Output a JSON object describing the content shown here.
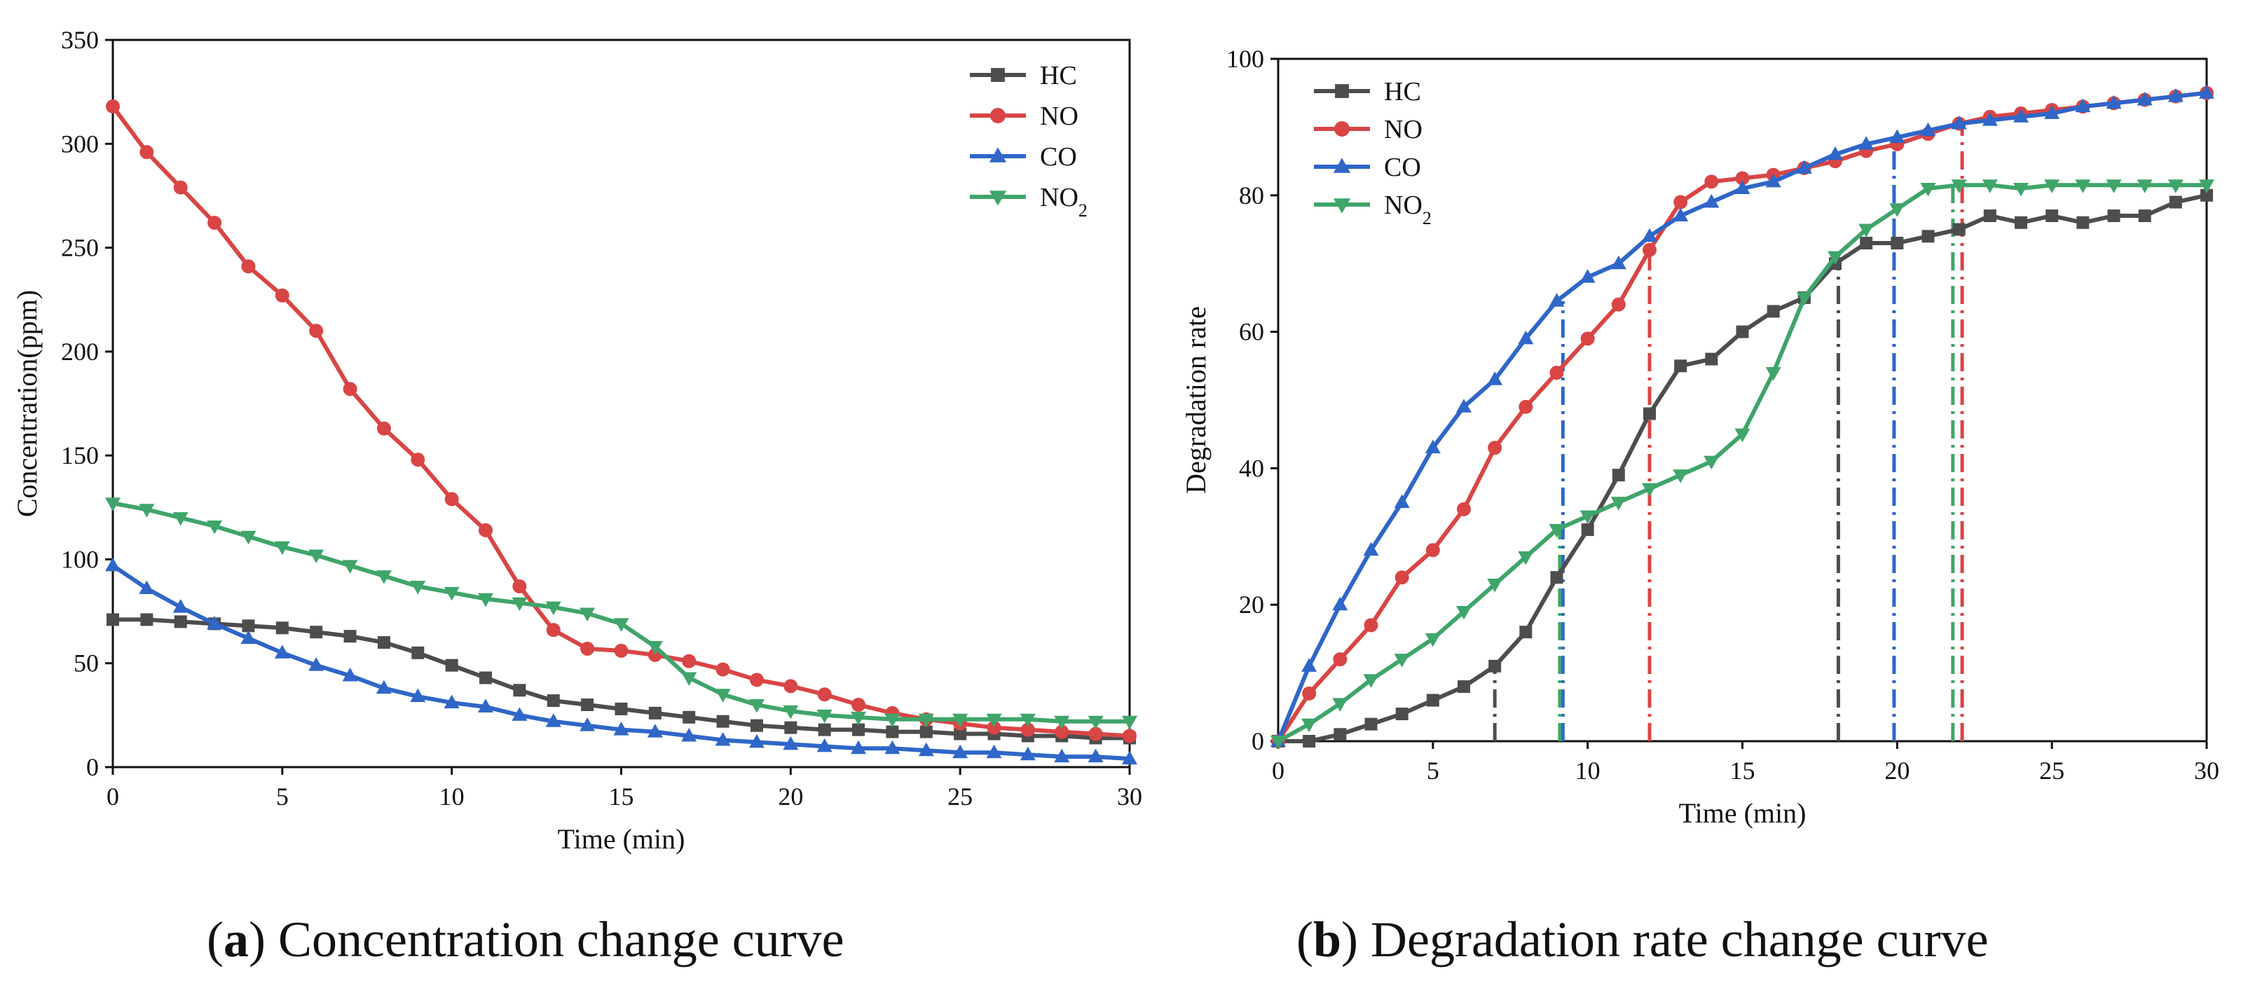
{
  "colors": {
    "HC": "#4d4d4d",
    "NO": "#d94545",
    "CO": "#2f66c8",
    "NO2": "#3fa56a"
  },
  "captions": {
    "a_letter": "a",
    "a_text": "Concentration change curve",
    "b_letter": "b",
    "b_text": "Degradation rate change curve"
  },
  "chart_data": [
    {
      "type": "line",
      "title": "",
      "xlabel": "Time (min)",
      "ylabel": "Concentration(ppm)",
      "xlim": [
        0,
        30
      ],
      "ylim": [
        0,
        350
      ],
      "xticks": [
        0,
        5,
        10,
        15,
        20,
        25,
        30
      ],
      "yticks": [
        0,
        50,
        100,
        150,
        200,
        250,
        300,
        350
      ],
      "legend_position": "top-right",
      "x": [
        0,
        1,
        2,
        3,
        4,
        5,
        6,
        7,
        8,
        9,
        10,
        11,
        12,
        13,
        14,
        15,
        16,
        17,
        18,
        19,
        20,
        21,
        22,
        23,
        24,
        25,
        26,
        27,
        28,
        29,
        30
      ],
      "series": [
        {
          "name": "HC",
          "key": "HC",
          "marker": "square",
          "values": [
            71,
            71,
            70,
            69,
            68,
            67,
            65,
            63,
            60,
            55,
            49,
            43,
            37,
            32,
            30,
            28,
            26,
            24,
            22,
            20,
            19,
            18,
            18,
            17,
            17,
            16,
            16,
            15,
            15,
            14,
            14
          ]
        },
        {
          "name": "NO",
          "key": "NO",
          "marker": "circle",
          "values": [
            318,
            296,
            279,
            262,
            241,
            227,
            210,
            182,
            163,
            148,
            129,
            114,
            87,
            66,
            57,
            56,
            54,
            51,
            47,
            42,
            39,
            35,
            30,
            26,
            23,
            21,
            19,
            18,
            17,
            16,
            15
          ]
        },
        {
          "name": "CO",
          "key": "CO",
          "marker": "triangle-up",
          "values": [
            97,
            86,
            77,
            69,
            62,
            55,
            49,
            44,
            38,
            34,
            31,
            29,
            25,
            22,
            20,
            18,
            17,
            15,
            13,
            12,
            11,
            10,
            9,
            9,
            8,
            7,
            7,
            6,
            5,
            5,
            4
          ]
        },
        {
          "name": "NO2",
          "key": "NO2",
          "marker": "triangle-down",
          "values": [
            127,
            124,
            120,
            116,
            111,
            106,
            102,
            97,
            92,
            87,
            84,
            81,
            79,
            77,
            74,
            69,
            58,
            43,
            35,
            30,
            27,
            25,
            24,
            23,
            23,
            23,
            23,
            23,
            22,
            22,
            22
          ]
        }
      ]
    },
    {
      "type": "line",
      "title": "",
      "xlabel": "Time (min)",
      "ylabel": "Degradation rate",
      "xlim": [
        0,
        30
      ],
      "ylim": [
        0,
        100
      ],
      "xticks": [
        0,
        5,
        10,
        15,
        20,
        25,
        30
      ],
      "yticks": [
        0,
        20,
        40,
        60,
        80,
        100
      ],
      "legend_position": "top-left",
      "x": [
        0,
        1,
        2,
        3,
        4,
        5,
        6,
        7,
        8,
        9,
        10,
        11,
        12,
        13,
        14,
        15,
        16,
        17,
        18,
        19,
        20,
        21,
        22,
        23,
        24,
        25,
        26,
        27,
        28,
        29,
        30
      ],
      "series": [
        {
          "name": "HC",
          "key": "HC",
          "marker": "square",
          "values": [
            0,
            0,
            1,
            2.5,
            4,
            6,
            8,
            11,
            16,
            24,
            31,
            39,
            48,
            55,
            56,
            60,
            63,
            65,
            70,
            73,
            73,
            74,
            75,
            77,
            76,
            77,
            76,
            77,
            77,
            79,
            80
          ]
        },
        {
          "name": "NO",
          "key": "NO",
          "marker": "circle",
          "values": [
            0,
            7,
            12,
            17,
            24,
            28,
            34,
            43,
            49,
            54,
            59,
            64,
            72,
            79,
            82,
            82.5,
            83,
            84,
            85,
            86.5,
            87.5,
            89,
            90.5,
            91.5,
            92,
            92.5,
            93,
            93.5,
            94,
            94.5,
            95
          ]
        },
        {
          "name": "CO",
          "key": "CO",
          "marker": "triangle-up",
          "values": [
            0,
            11,
            20,
            28,
            35,
            43,
            49,
            53,
            59,
            64.5,
            68,
            70,
            74,
            77,
            79,
            81,
            82,
            84,
            86,
            87.5,
            88.5,
            89.5,
            90.5,
            91,
            91.5,
            92,
            93,
            93.5,
            94,
            94.5,
            95
          ]
        },
        {
          "name": "NO2",
          "key": "NO2",
          "marker": "triangle-down",
          "values": [
            0,
            2.5,
            5.5,
            9,
            12,
            15,
            19,
            23,
            27,
            31,
            33,
            35,
            37,
            39,
            41,
            45,
            54,
            65,
            71,
            75,
            78,
            81,
            81.5,
            81.5,
            81,
            81.5,
            81.5,
            81.5,
            81.5,
            81.5,
            81.5
          ]
        }
      ],
      "annotations": [
        {
          "type": "vline",
          "x": 7,
          "y_to": 11,
          "color_key": "HC"
        },
        {
          "type": "vline",
          "x": 9.2,
          "y_to": 64.5,
          "color_key": "CO"
        },
        {
          "type": "vline",
          "x": 9.1,
          "y_to": 31,
          "color_key": "NO2"
        },
        {
          "type": "vline",
          "x": 12,
          "y_to": 72,
          "color_key": "NO"
        },
        {
          "type": "vline",
          "x": 18.1,
          "y_to": 70,
          "color_key": "HC"
        },
        {
          "type": "vline",
          "x": 19.9,
          "y_to": 88.5,
          "color_key": "CO"
        },
        {
          "type": "vline",
          "x": 21.8,
          "y_to": 81.5,
          "color_key": "NO2"
        },
        {
          "type": "vline",
          "x": 22.1,
          "y_to": 90.5,
          "color_key": "NO"
        }
      ]
    }
  ]
}
